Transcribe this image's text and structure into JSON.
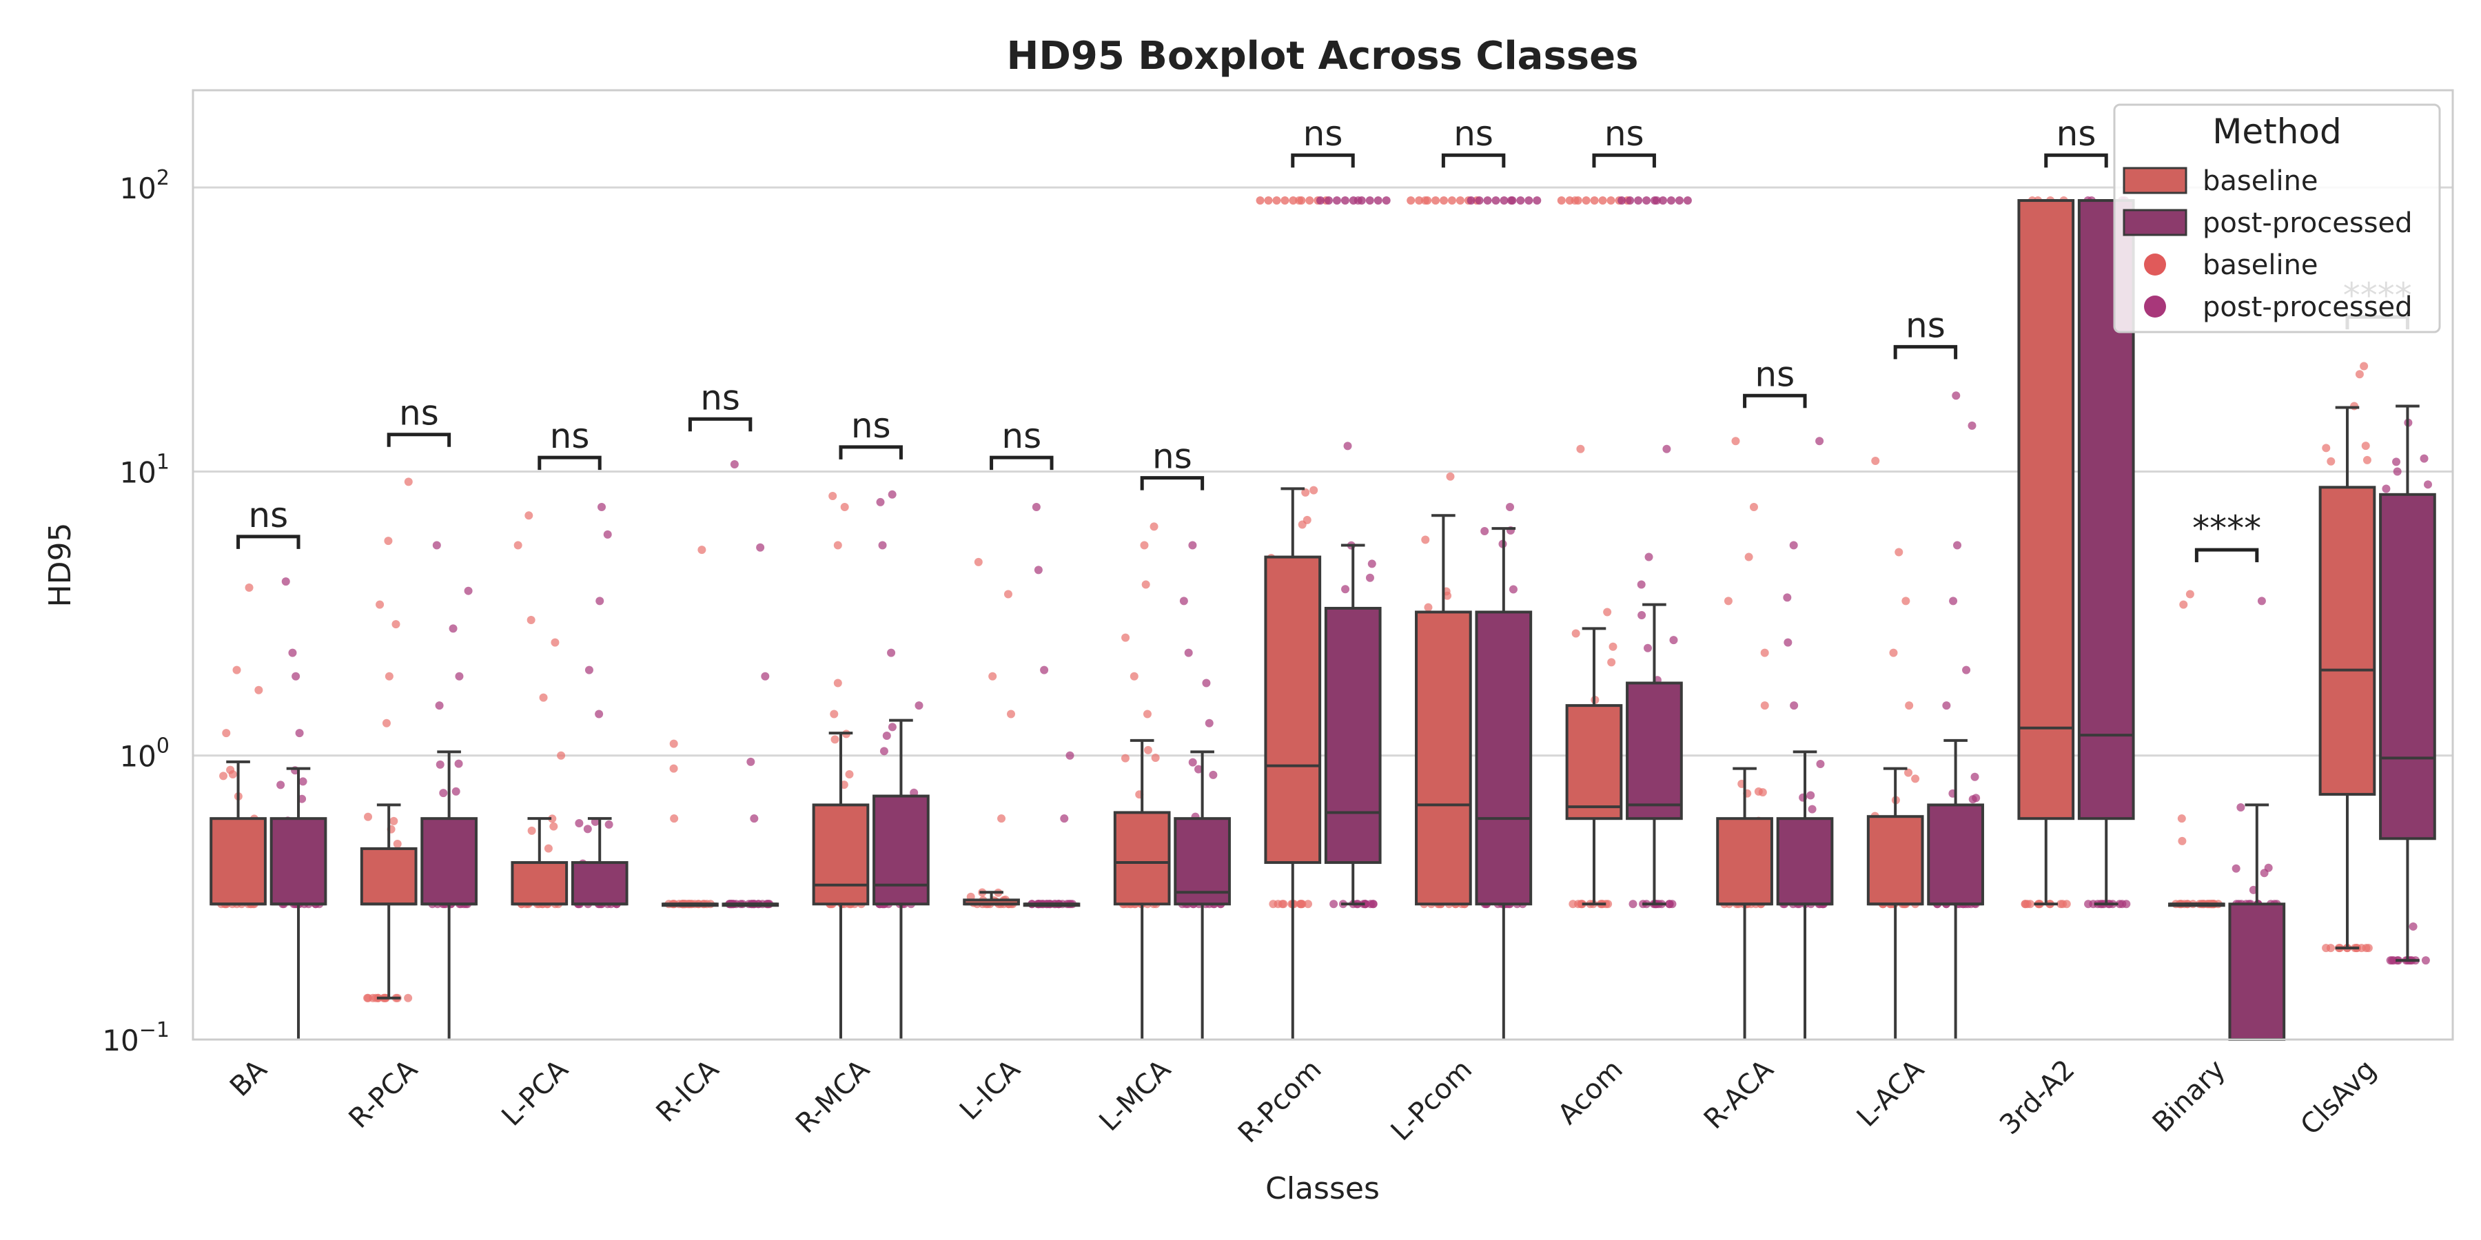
{
  "chart_data": {
    "type": "boxplot",
    "title": "HD95 Boxplot Across Classes",
    "xlabel": "Classes",
    "ylabel": "HD95",
    "yscale": "log",
    "ylim": [
      0.1,
      220
    ],
    "yticks": [
      {
        "value": 0.1,
        "base": "10",
        "exp": "−1"
      },
      {
        "value": 1,
        "base": "10",
        "exp": "0"
      },
      {
        "value": 10,
        "base": "10",
        "exp": "1"
      },
      {
        "value": 100,
        "base": "10",
        "exp": "2"
      }
    ],
    "grid": true,
    "legend": {
      "title": "Method",
      "position": "top-right",
      "entries": [
        {
          "label": "baseline",
          "kind": "box",
          "color": "#d0615d"
        },
        {
          "label": "post-processed",
          "kind": "box",
          "color": "#8c3b6c"
        },
        {
          "label": "baseline",
          "kind": "point",
          "color": "#e05a5a"
        },
        {
          "label": "post-processed",
          "kind": "point",
          "color": "#a8377a"
        }
      ]
    },
    "colors": {
      "baseline_box": "#d0615d",
      "post_box": "#8c3b6c",
      "baseline_point": "#e8706c",
      "post_point": "#a8377a",
      "line": "#3a3a3a",
      "grid": "#d6d6d6"
    },
    "categories": [
      "BA",
      "R-PCA",
      "L-PCA",
      "R-ICA",
      "R-MCA",
      "L-ICA",
      "L-MCA",
      "R-Pcom",
      "L-Pcom",
      "Acom",
      "R-ACA",
      "L-ACA",
      "3rd-A2",
      "Binary",
      "ClsAvg"
    ],
    "series": [
      {
        "name": "baseline",
        "boxes": [
          {
            "whislo": 0.3,
            "q1": 0.3,
            "med": 0.3,
            "q3": 0.6,
            "whishi": 0.95,
            "outliers": [
              1.7,
              2.0,
              3.9,
              1.2
            ]
          },
          {
            "whislo": 0.14,
            "q1": 0.3,
            "med": 0.3,
            "q3": 0.47,
            "whishi": 0.67,
            "outliers": [
              1.3,
              1.9,
              2.9,
              3.4,
              5.7,
              9.2,
              0.14
            ]
          },
          {
            "whislo": 0.3,
            "q1": 0.3,
            "med": 0.3,
            "q3": 0.42,
            "whishi": 0.6,
            "outliers": [
              1.0,
              1.6,
              2.5,
              3.0,
              5.5,
              7.0
            ]
          },
          {
            "whislo": 0.3,
            "q1": 0.3,
            "med": 0.3,
            "q3": 0.3,
            "whishi": 0.3,
            "outliers": [
              0.6,
              0.9,
              1.1,
              5.3
            ]
          },
          {
            "whislo": 0.1,
            "q1": 0.3,
            "med": 0.35,
            "q3": 0.67,
            "whishi": 1.2,
            "outliers": [
              1.4,
              1.8,
              5.5,
              7.5,
              8.2
            ]
          },
          {
            "whislo": 0.3,
            "q1": 0.3,
            "med": 0.3,
            "q3": 0.31,
            "whishi": 0.33,
            "outliers": [
              0.6,
              1.4,
              1.9,
              3.7,
              4.8
            ]
          },
          {
            "whislo": 0.1,
            "q1": 0.3,
            "med": 0.42,
            "q3": 0.63,
            "whishi": 1.13,
            "outliers": [
              1.4,
              1.9,
              2.6,
              4.0,
              5.5,
              6.4
            ]
          },
          {
            "whislo": 0.1,
            "q1": 0.42,
            "med": 0.92,
            "q3": 5.0,
            "whishi": 8.7,
            "outliers": [
              90
            ]
          },
          {
            "whislo": 0.3,
            "q1": 0.3,
            "med": 0.67,
            "q3": 3.2,
            "whishi": 7.0,
            "outliers": [
              9.6,
              90
            ]
          },
          {
            "whislo": 0.3,
            "q1": 0.6,
            "med": 0.66,
            "q3": 1.5,
            "whishi": 2.8,
            "outliers": [
              3.2,
              12.0,
              90
            ]
          },
          {
            "whislo": 0.1,
            "q1": 0.3,
            "med": 0.3,
            "q3": 0.6,
            "whishi": 0.9,
            "outliers": [
              1.5,
              2.3,
              3.5,
              5.0,
              7.5,
              12.8
            ]
          },
          {
            "whislo": 0.1,
            "q1": 0.3,
            "med": 0.3,
            "q3": 0.61,
            "whishi": 0.9,
            "outliers": [
              1.5,
              2.3,
              3.5,
              5.2,
              10.9
            ]
          },
          {
            "whislo": 0.3,
            "q1": 0.6,
            "med": 1.25,
            "q3": 90,
            "whishi": 90,
            "outliers": []
          },
          {
            "whislo": 0.3,
            "q1": 0.3,
            "med": 0.3,
            "q3": 0.3,
            "whishi": 0.3,
            "outliers": [
              0.5,
              0.6,
              3.4,
              3.7
            ]
          },
          {
            "whislo": 0.21,
            "q1": 0.73,
            "med": 2.0,
            "q3": 8.8,
            "whishi": 16.8,
            "outliers": [
              17.0,
              22.0,
              23.5
            ]
          }
        ]
      },
      {
        "name": "post-processed",
        "boxes": [
          {
            "whislo": 0.1,
            "q1": 0.3,
            "med": 0.3,
            "q3": 0.6,
            "whishi": 0.9,
            "outliers": [
              1.2,
              1.9,
              2.3,
              4.1
            ]
          },
          {
            "whislo": 0.1,
            "q1": 0.3,
            "med": 0.3,
            "q3": 0.6,
            "whishi": 1.03,
            "outliers": [
              1.5,
              1.9,
              2.8,
              3.8,
              5.5
            ]
          },
          {
            "whislo": 0.3,
            "q1": 0.3,
            "med": 0.3,
            "q3": 0.42,
            "whishi": 0.6,
            "outliers": [
              1.4,
              2.0,
              3.5,
              6.0,
              7.5
            ]
          },
          {
            "whislo": 0.3,
            "q1": 0.3,
            "med": 0.3,
            "q3": 0.3,
            "whishi": 0.3,
            "outliers": [
              0.6,
              0.95,
              1.9,
              5.4,
              10.6
            ]
          },
          {
            "whislo": 0.1,
            "q1": 0.3,
            "med": 0.35,
            "q3": 0.72,
            "whishi": 1.33,
            "outliers": [
              1.5,
              2.3,
              5.5,
              7.8,
              8.3
            ]
          },
          {
            "whislo": 0.3,
            "q1": 0.3,
            "med": 0.3,
            "q3": 0.3,
            "whishi": 0.3,
            "outliers": [
              0.6,
              1.0,
              2.0,
              4.5,
              7.5
            ]
          },
          {
            "whislo": 0.1,
            "q1": 0.3,
            "med": 0.33,
            "q3": 0.6,
            "whishi": 1.03,
            "outliers": [
              1.3,
              1.8,
              2.3,
              3.5,
              5.5
            ]
          },
          {
            "whislo": 0.3,
            "q1": 0.42,
            "med": 0.63,
            "q3": 3.3,
            "whishi": 5.5,
            "outliers": [
              12.3,
              90
            ]
          },
          {
            "whislo": 0.1,
            "q1": 0.3,
            "med": 0.6,
            "q3": 3.2,
            "whishi": 6.3,
            "outliers": [
              7.5,
              90
            ]
          },
          {
            "whislo": 0.3,
            "q1": 0.6,
            "med": 0.67,
            "q3": 1.8,
            "whishi": 3.4,
            "outliers": [
              4.0,
              5.0,
              12.0,
              90
            ]
          },
          {
            "whislo": 0.1,
            "q1": 0.3,
            "med": 0.3,
            "q3": 0.6,
            "whishi": 1.03,
            "outliers": [
              1.5,
              2.5,
              3.6,
              5.5,
              12.8
            ]
          },
          {
            "whislo": 0.1,
            "q1": 0.3,
            "med": 0.3,
            "q3": 0.67,
            "whishi": 1.13,
            "outliers": [
              1.5,
              2.0,
              3.5,
              5.5,
              14.5,
              18.5
            ]
          },
          {
            "whislo": 0.3,
            "q1": 0.6,
            "med": 1.18,
            "q3": 90,
            "whishi": 90,
            "outliers": []
          },
          {
            "whislo": 0.1,
            "q1": 0.1,
            "med": 0.1,
            "q3": 0.3,
            "whishi": 0.67,
            "outliers": [
              0.4,
              3.5
            ]
          },
          {
            "whislo": 0.19,
            "q1": 0.51,
            "med": 0.98,
            "q3": 8.3,
            "whishi": 17.0,
            "outliers": [
              0.25,
              9.0,
              10.0
            ]
          }
        ]
      }
    ],
    "significance": [
      {
        "category": "BA",
        "label": "ns",
        "y": 5.9
      },
      {
        "category": "R-PCA",
        "label": "ns",
        "y": 13.5
      },
      {
        "category": "L-PCA",
        "label": "ns",
        "y": 11.2
      },
      {
        "category": "R-ICA",
        "label": "ns",
        "y": 15.3
      },
      {
        "category": "R-MCA",
        "label": "ns",
        "y": 12.2
      },
      {
        "category": "L-ICA",
        "label": "ns",
        "y": 11.2
      },
      {
        "category": "L-MCA",
        "label": "ns",
        "y": 9.5
      },
      {
        "category": "R-Pcom",
        "label": "ns",
        "y": 130
      },
      {
        "category": "L-Pcom",
        "label": "ns",
        "y": 130
      },
      {
        "category": "Acom",
        "label": "ns",
        "y": 130
      },
      {
        "category": "R-ACA",
        "label": "ns",
        "y": 18.5
      },
      {
        "category": "L-ACA",
        "label": "ns",
        "y": 27.5
      },
      {
        "category": "3rd-A2",
        "label": "ns",
        "y": 130
      },
      {
        "category": "Binary",
        "label": "****",
        "y": 5.3
      },
      {
        "category": "ClsAvg",
        "label": "****",
        "y": 35
      }
    ]
  }
}
